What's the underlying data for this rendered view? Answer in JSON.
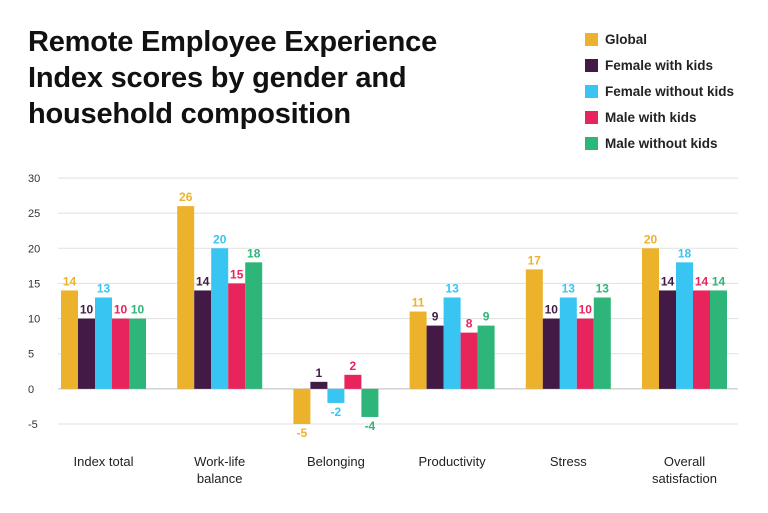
{
  "title": "Remote Employee Experience Index scores by gender and household composition",
  "chart_data": {
    "type": "bar",
    "title": "Remote Employee Experience Index scores by gender and household composition",
    "xlabel": "",
    "ylabel": "",
    "ylim": [
      -5,
      30
    ],
    "yticks": [
      30,
      25,
      20,
      15,
      10,
      5,
      0,
      -5
    ],
    "grid": true,
    "legend_position": "top-right",
    "categories": [
      [
        "Index total"
      ],
      [
        "Work-life",
        "balance"
      ],
      [
        "Belonging"
      ],
      [
        "Productivity"
      ],
      [
        "Stress"
      ],
      [
        "Overall",
        "satisfaction"
      ]
    ],
    "series": [
      {
        "name": "Global",
        "color": "#EDB22C",
        "values": [
          14,
          26,
          -5,
          11,
          17,
          20
        ]
      },
      {
        "name": "Female with kids",
        "color": "#421A45",
        "values": [
          10,
          14,
          1,
          9,
          10,
          14
        ]
      },
      {
        "name": "Female without kids",
        "color": "#38C5F2",
        "values": [
          13,
          20,
          -2,
          13,
          13,
          18
        ]
      },
      {
        "name": "Male with kids",
        "color": "#E8245C",
        "values": [
          10,
          15,
          2,
          8,
          10,
          14
        ]
      },
      {
        "name": "Male without kids",
        "color": "#2EB579",
        "values": [
          10,
          18,
          -4,
          9,
          13,
          14
        ]
      }
    ]
  }
}
